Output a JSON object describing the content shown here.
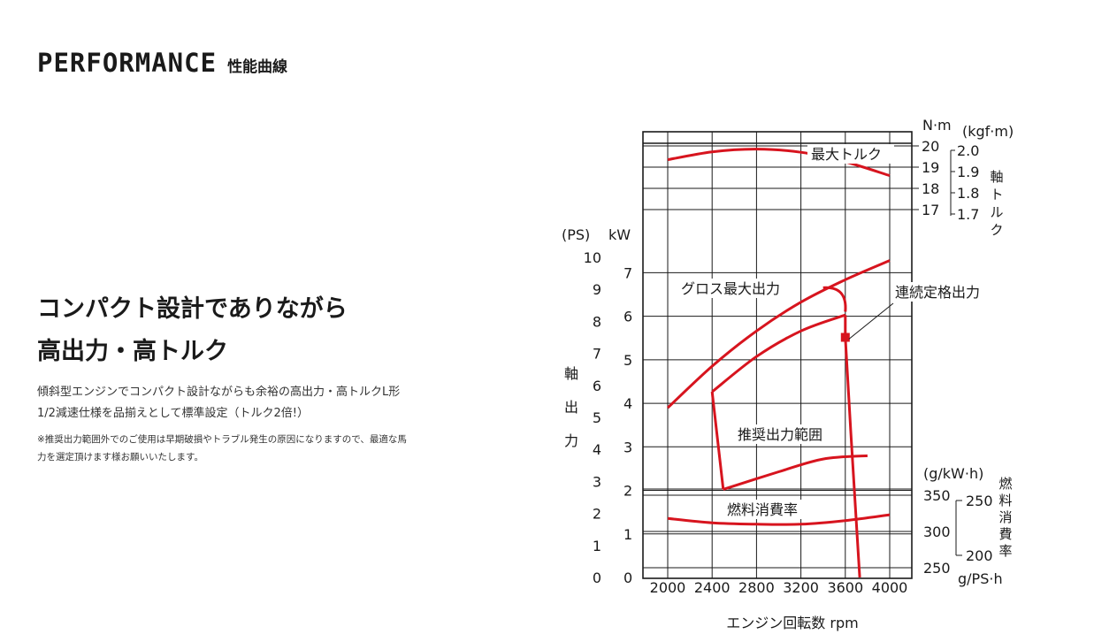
{
  "header": {
    "title_en": "PERFORMANCE",
    "title_jp": "性能曲線"
  },
  "headline": {
    "line1": "コンパクト設計でありながら",
    "line2": "高出力・高トルク"
  },
  "description": {
    "line1": "傾斜型エンジンでコンパクト設計ながらも余裕の高出力・高トルクL形",
    "line2": "1/2減速仕様を品揃えとして標準設定（トルク2倍!）"
  },
  "note": {
    "line1": "※推奨出力範囲外でのご使用は早期破損やトラブル発生の原因になりますので、最適な馬",
    "line2": "力を選定頂けます様お願いいたします。"
  },
  "colors": {
    "curve": "#d7141e",
    "grid": "#1a1a1a",
    "text": "#1a1a1a"
  },
  "chart_data": {
    "type": "line",
    "xlabel": "エンジン回転数 rpm",
    "x_ticks": [
      "2000",
      "2400",
      "2800",
      "3200",
      "3600",
      "4000"
    ],
    "xlim": [
      1800,
      4200
    ],
    "grid": true,
    "torque_panel": {
      "unit_left": "N·m",
      "unit_right": "(kgf·m)",
      "ticks_left": [
        "20",
        "19",
        "18",
        "17"
      ],
      "ticks_right": [
        "2.0",
        "1.9",
        "1.8",
        "1.7"
      ],
      "side_label": "軸トルク",
      "series": [
        {
          "name": "最大トルク",
          "x": [
            2000,
            2400,
            2800,
            3200,
            3600,
            4000
          ],
          "y": [
            19.35,
            19.72,
            19.85,
            19.7,
            19.25,
            18.6
          ]
        }
      ]
    },
    "power_panel": {
      "unit_ps": "(PS)",
      "unit_kw": "kW",
      "ticks_ps": [
        "0",
        "1",
        "2",
        "3",
        "4",
        "5",
        "6",
        "7",
        "8",
        "9",
        "10"
      ],
      "ticks_kw": [
        "0",
        "1",
        "2",
        "3",
        "4",
        "5",
        "6",
        "7"
      ],
      "side_label": "軸出力",
      "ylim": [
        0,
        10
      ],
      "series": [
        {
          "name": "グロス最大出力",
          "x": [
            2000,
            2400,
            2800,
            3200,
            3600,
            4000
          ],
          "y": [
            5.3,
            6.6,
            7.7,
            8.6,
            9.3,
            9.9
          ]
        },
        {
          "name": "連続定格出力",
          "x": [
            2400,
            2800,
            3200,
            3600
          ],
          "y": [
            5.8,
            6.9,
            7.7,
            8.2
          ]
        }
      ],
      "recommended_range": {
        "label": "推奨出力範囲",
        "upper_x": [
          2400,
          2800,
          3200,
          3600
        ],
        "upper_y": [
          5.8,
          6.9,
          7.7,
          8.2
        ],
        "lower_x": [
          2500,
          3000,
          3400,
          3800
        ],
        "lower_y": [
          2.75,
          3.3,
          3.7,
          3.8
        ]
      },
      "rated_point": {
        "x": 3600,
        "y": 7.5
      }
    },
    "fuel_panel": {
      "unit_left": "(g/kW·h)",
      "unit_right": "g/PS·h",
      "ticks_left": [
        "350",
        "300",
        "250"
      ],
      "ticks_right": [
        "250",
        "200"
      ],
      "side_label": "燃料消費率",
      "series": [
        {
          "name": "燃料消費率",
          "x": [
            2000,
            2400,
            2800,
            3200,
            3600,
            4000
          ],
          "y": [
            318,
            312,
            310,
            310,
            315,
            323
          ]
        }
      ]
    }
  }
}
